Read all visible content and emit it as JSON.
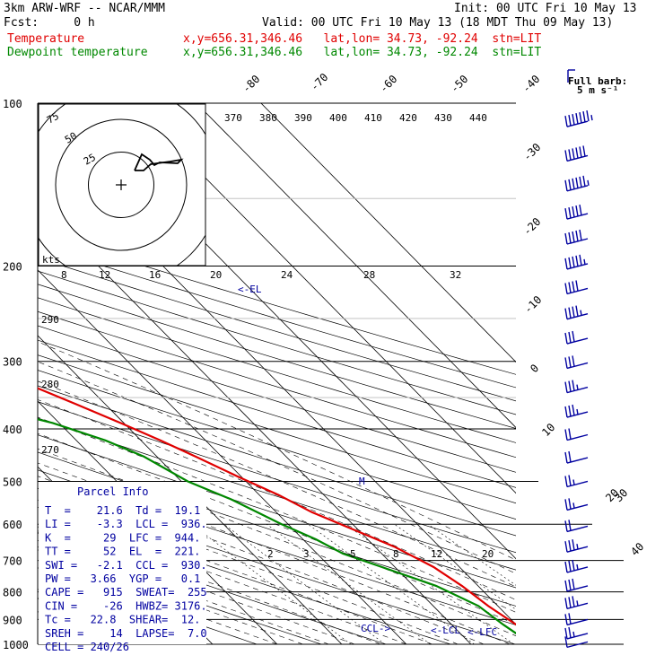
{
  "header": {
    "model": "3km ARW-WRF -- NCAR/MMM",
    "init": "Init: 00 UTC Fri 10 May 13",
    "fcst": "Fcst:     0 h",
    "valid": "Valid: 00 UTC Fri 10 May 13 (18 MDT Thu 09 May 13)",
    "temp_label": "Temperature",
    "dew_label": "Dewpoint temperature",
    "temp_loc": "x,y=656.31,346.46   lat,lon= 34.73, -92.24  stn=LIT",
    "dew_loc": "x,y=656.31,346.46   lat,lon= 34.73, -92.24  stn=LIT"
  },
  "colors": {
    "temperature": "#e00000",
    "dewpoint": "#008800",
    "wind": "#0000a0",
    "grid": "#000000"
  },
  "barb_legend": {
    "title": "Full barb:",
    "value": "5 m s⁻¹"
  },
  "parcel_info": {
    "title": "Parcel Info",
    "rows": [
      "T  =    21.6  Td =  19.1",
      "LI =    -3.3  LCL =  936.",
      "K  =     29  LFC =  944.",
      "TT =     52  EL  =  221.",
      "SWI =   -2.1  CCL =  930.",
      "PW =   3.66  YGP =   0.1",
      "CAPE =   915  SWEAT=  255",
      "CIN =    -26  HWBZ= 3176.",
      "Tc =   22.8  SHEAR=  12.",
      "SREH =    14  LAPSE=  7.0",
      "CELL = 240/26"
    ]
  },
  "level_labels": {
    "el": "<-EL",
    "lcl": "<-LCL",
    "lfc": "<-LFC",
    "ccl": "CCL->",
    "mark": "M"
  },
  "hodograph": {
    "unit_label": "kts",
    "ring_labels": [
      "25",
      "50",
      "75"
    ],
    "rings_kts": [
      25,
      50,
      75
    ]
  },
  "chart_data": {
    "type": "skew-t",
    "title": "",
    "ylabel": "Pressure (hPa)",
    "pressure_ticks": [
      100,
      200,
      300,
      400,
      500,
      600,
      700,
      800,
      900,
      1000
    ],
    "temperature_ticks": [
      "-80",
      "-70",
      "-60",
      "-50",
      "-40",
      "-30",
      "-20",
      "-10",
      "0",
      "10",
      "20",
      "30",
      "40"
    ],
    "theta_labels": [
      "370",
      "380",
      "390",
      "400",
      "410",
      "420",
      "430",
      "440"
    ],
    "theta_labels_left": [
      "290",
      "280",
      "270"
    ],
    "mixing_ratio_upper": [
      "8",
      "12",
      "16",
      "20",
      "24",
      "28",
      "32"
    ],
    "mixing_ratio_lower": [
      "2",
      "3",
      "5",
      "8",
      "12",
      "20"
    ],
    "series": [
      {
        "name": "Temperature",
        "x": [
          -60.5,
          -59.8,
          -58.5,
          -57.5,
          -55.0,
          -52.5,
          -50.0,
          -47.5,
          -44.0,
          -40.5,
          -38.0,
          -35.0,
          -31.5,
          -27.5,
          -24.0,
          -19.0,
          -14.5,
          -10.5,
          -7.0,
          -4.0,
          -0.5,
          3.0,
          5.5,
          9.0,
          13.0,
          16.0,
          17.5,
          18.5,
          20.0,
          21.6
        ],
        "y": [
          100,
          105,
          110,
          115,
          125,
          135,
          150,
          165,
          180,
          195,
          210,
          225,
          250,
          275,
          300,
          330,
          360,
          390,
          420,
          450,
          490,
          530,
          570,
          610,
          660,
          720,
          780,
          850,
          920,
          980
        ]
      },
      {
        "name": "Dewpoint temperature",
        "x": [
          -89.0,
          -90.0,
          -92.0,
          -95.0,
          -96.0,
          -90.0,
          -79.0,
          -72.0,
          -65.0,
          -60.5,
          -58.0,
          -55.0,
          -50.0,
          -45.0,
          -38.0,
          -30.0,
          -21.0,
          -15.5,
          -12.0,
          -9.0,
          -5.0,
          -1.0,
          2.0,
          4.0,
          8.0,
          13.5,
          17.0,
          18.0,
          19.1
        ],
        "y": [
          100,
          110,
          120,
          130,
          140,
          150,
          160,
          175,
          190,
          200,
          220,
          250,
          275,
          300,
          330,
          360,
          390,
          420,
          450,
          500,
          540,
          600,
          640,
          680,
          720,
          780,
          850,
          920,
          980
        ]
      }
    ],
    "wind_barbs": [
      {
        "p": 108,
        "speed_kts": 65
      },
      {
        "p": 125,
        "speed_kts": 60
      },
      {
        "p": 142,
        "speed_kts": 55
      },
      {
        "p": 160,
        "speed_kts": 50
      },
      {
        "p": 178,
        "speed_kts": 50
      },
      {
        "p": 198,
        "speed_kts": 45
      },
      {
        "p": 220,
        "speed_kts": 40
      },
      {
        "p": 245,
        "speed_kts": 35
      },
      {
        "p": 272,
        "speed_kts": 30
      },
      {
        "p": 302,
        "speed_kts": 30
      },
      {
        "p": 335,
        "speed_kts": 25
      },
      {
        "p": 372,
        "speed_kts": 25
      },
      {
        "p": 410,
        "speed_kts": 20
      },
      {
        "p": 452,
        "speed_kts": 20
      },
      {
        "p": 500,
        "speed_kts": 15
      },
      {
        "p": 552,
        "speed_kts": 15
      },
      {
        "p": 605,
        "speed_kts": 20
      },
      {
        "p": 660,
        "speed_kts": 25
      },
      {
        "p": 720,
        "speed_kts": 25
      },
      {
        "p": 780,
        "speed_kts": 30
      },
      {
        "p": 840,
        "speed_kts": 25
      },
      {
        "p": 900,
        "speed_kts": 20
      },
      {
        "p": 955,
        "speed_kts": 15
      },
      {
        "p": 990,
        "speed_kts": 10
      }
    ]
  }
}
